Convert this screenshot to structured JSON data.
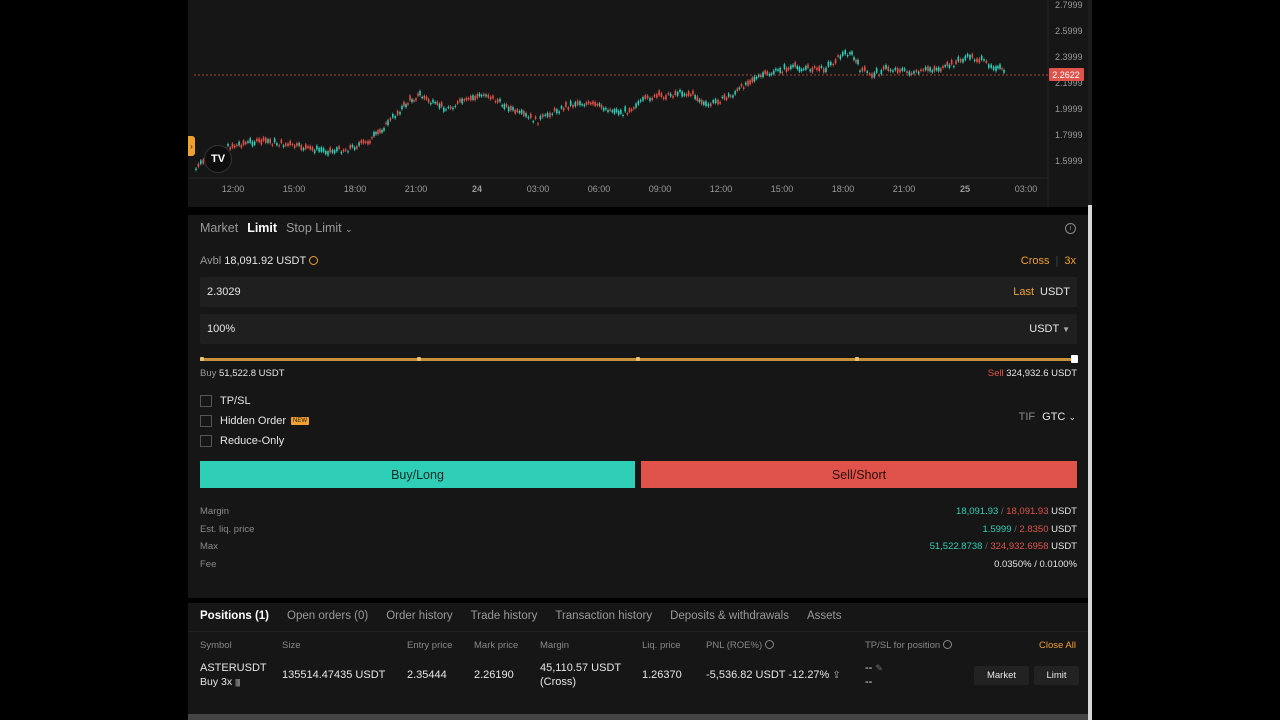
{
  "chart": {
    "price_axis": [
      "2.7999",
      "2.5999",
      "2.3999",
      "2.1999",
      "1.9999",
      "1.7999",
      "1.5999"
    ],
    "current_price": "2.2622",
    "time_axis": [
      "12:00",
      "15:00",
      "18:00",
      "21:00",
      "24",
      "03:00",
      "06:00",
      "09:00",
      "12:00",
      "15:00",
      "18:00",
      "21:00",
      "25",
      "03:00"
    ],
    "logo": "TV"
  },
  "order": {
    "tabs": [
      "Market",
      "Limit",
      "Stop Limit"
    ],
    "active_tab": "Limit",
    "avbl_label": "Avbl",
    "avbl_value": "18,091.92 USDT",
    "margin_mode": "Cross",
    "leverage": "3x",
    "price_value": "2.3029",
    "price_last": "Last",
    "price_unit": "USDT",
    "size_value": "100%",
    "size_unit": "USDT",
    "slider_percent": 100,
    "buy_label": "Buy",
    "buy_value": "51,522.8 USDT",
    "sell_label": "Sell",
    "sell_value": "324,932.6 USDT",
    "options": [
      {
        "label": "TP/SL"
      },
      {
        "label": "Hidden Order",
        "badge": "NEW"
      },
      {
        "label": "Reduce-Only"
      }
    ],
    "tif_label": "TIF",
    "tif_value": "GTC",
    "buy_button": "Buy/Long",
    "sell_button": "Sell/Short",
    "stats": {
      "margin_label": "Margin",
      "margin_buy": "18,091.93",
      "margin_sell": "18,091.93",
      "liq_label": "Est. liq. price",
      "liq_buy": "1.5999",
      "liq_sell": "2.8350",
      "max_label": "Max",
      "max_buy": "51,522.8738",
      "max_sell": "324,932.6958",
      "unit": "USDT",
      "fee_label": "Fee",
      "fee_value": "0.0350% / 0.0100%"
    }
  },
  "positions": {
    "tabs": [
      "Positions (1)",
      "Open orders (0)",
      "Order history",
      "Trade history",
      "Transaction history",
      "Deposits & withdrawals",
      "Assets"
    ],
    "headers": {
      "symbol": "Symbol",
      "size": "Size",
      "entry": "Entry price",
      "mark": "Mark price",
      "margin": "Margin",
      "liq": "Liq. price",
      "pnl": "PNL (ROE%)",
      "tpsl": "TP/SL for position",
      "close_all": "Close All"
    },
    "row": {
      "symbol": "ASTERUSDT",
      "side": "Buy 3x",
      "size": "135514.47435 USDT",
      "entry": "2.35444",
      "mark": "2.26190",
      "margin": "45,110.57 USDT",
      "margin_mode": "(Cross)",
      "liq": "1.26370",
      "pnl": "-5,536.82 USDT",
      "roe": "-12.27%",
      "tp": "--",
      "sl": "--",
      "market_button": "Market",
      "limit_button": "Limit"
    }
  },
  "colors": {
    "green": "#2ecfb6",
    "red": "#e0534a",
    "accent": "#f0a030"
  }
}
